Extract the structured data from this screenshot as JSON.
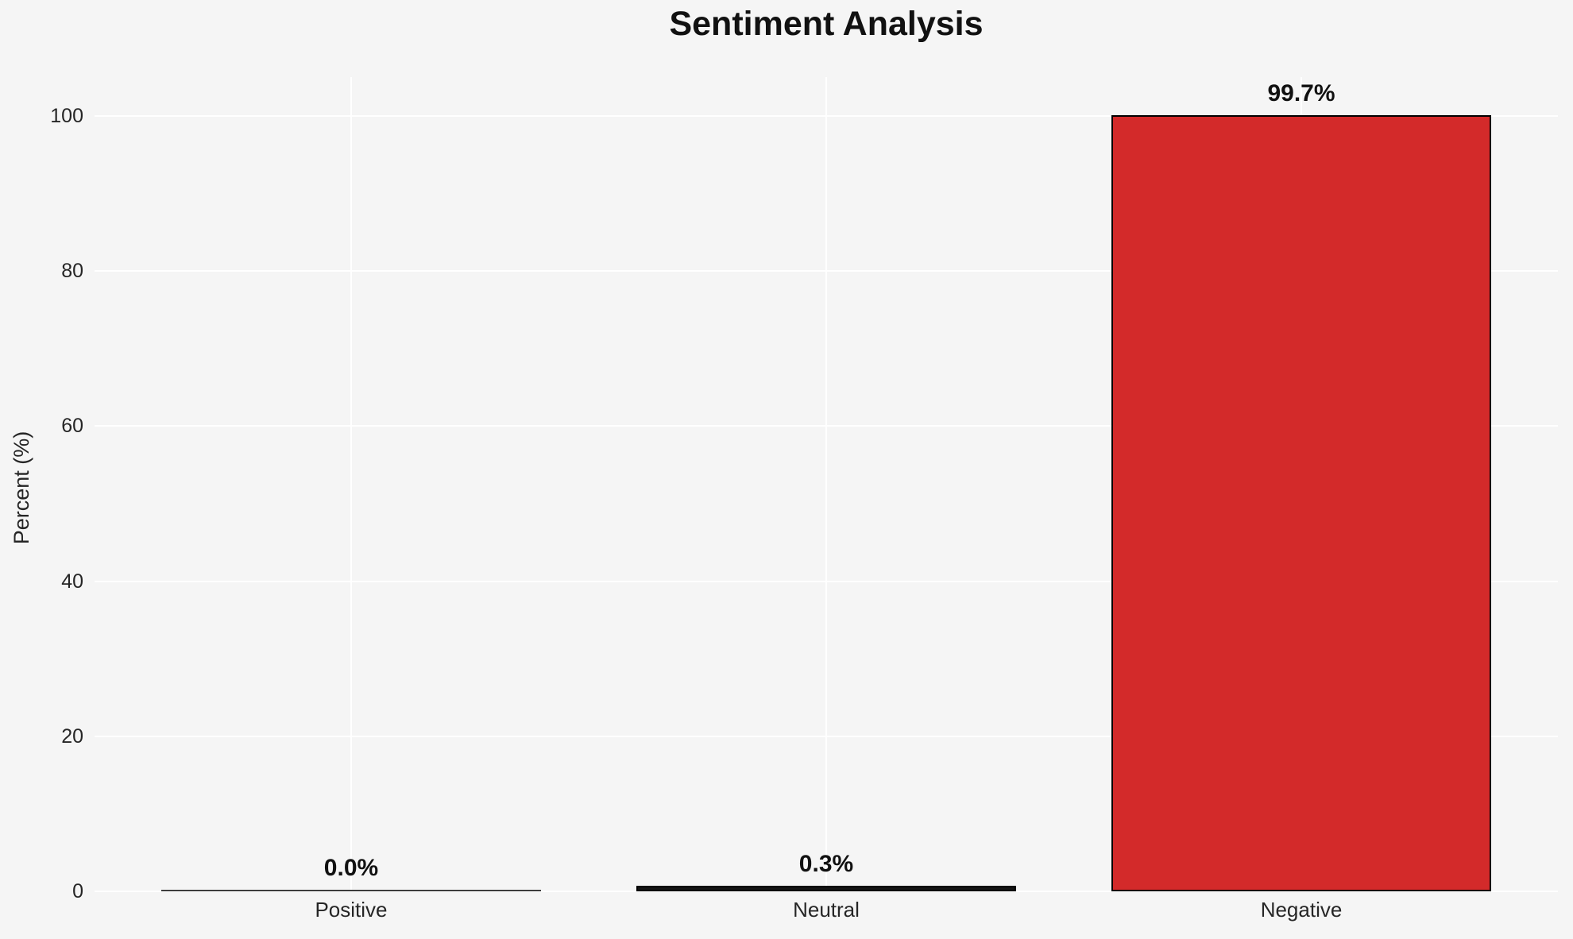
{
  "chart_data": {
    "type": "bar",
    "title": "Sentiment Analysis",
    "xlabel": "",
    "ylabel": "Percent (%)",
    "categories": [
      "Positive",
      "Neutral",
      "Negative"
    ],
    "values": [
      0.0,
      0.3,
      99.7
    ],
    "value_labels": [
      "0.0%",
      "0.3%",
      "99.7%"
    ],
    "yticks": [
      0,
      20,
      40,
      60,
      80,
      100
    ],
    "ylim": [
      0,
      105
    ],
    "grid": true,
    "legend_position": "none",
    "colors": {
      "background": "#f5f5f5",
      "gridline": "#ffffff",
      "text": "#1a1a1a",
      "bar_edge": "#000000",
      "bar_fills": [
        "#3d3d3d",
        "#141414",
        "#d32a2a"
      ]
    }
  }
}
